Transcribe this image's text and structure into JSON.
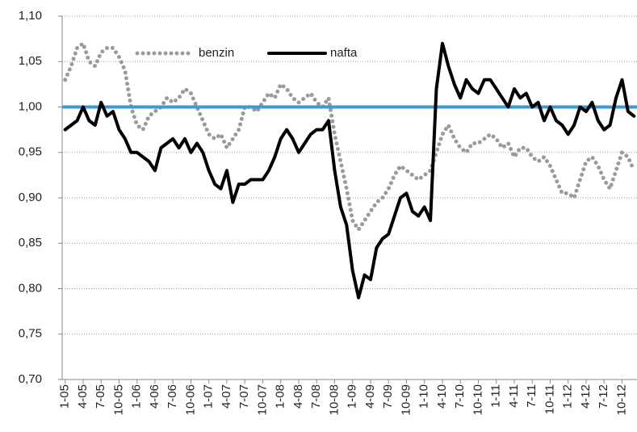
{
  "chart_data": {
    "type": "line",
    "categories": [
      "1-05",
      null,
      null,
      "4-05",
      null,
      null,
      "7-05",
      null,
      null,
      "10-05",
      null,
      null,
      "1-06",
      null,
      null,
      "4-06",
      null,
      null,
      "7-06",
      null,
      null,
      "10-06",
      null,
      null,
      "1-07",
      null,
      null,
      "4-07",
      null,
      null,
      "7-07",
      null,
      null,
      "10-07",
      null,
      null,
      "1-08",
      null,
      null,
      "4-08",
      null,
      null,
      "7-08",
      null,
      null,
      "10-08",
      null,
      null,
      "1-09",
      null,
      null,
      "4-09",
      null,
      null,
      "7-09",
      null,
      null,
      "10-09",
      null,
      null,
      "1-10",
      null,
      null,
      "4-10",
      null,
      null,
      "7-10",
      null,
      null,
      "10-10",
      null,
      null,
      "1-11",
      null,
      null,
      "4-11",
      null,
      null,
      "7-11",
      null,
      null,
      "10-11",
      null,
      null,
      "1-12",
      null,
      null,
      "4-12",
      null,
      null,
      "7-12",
      null,
      null,
      "10-12",
      null,
      null
    ],
    "series": [
      {
        "name": "benzin",
        "color": "#9b9b9b",
        "style": "dotted",
        "values": [
          1.03,
          1.045,
          1.065,
          1.07,
          1.05,
          1.045,
          1.06,
          1.065,
          1.065,
          1.055,
          1.04,
          1.0,
          0.98,
          0.975,
          0.99,
          0.995,
          1.0,
          1.01,
          1.005,
          1.01,
          1.02,
          1.015,
          1.0,
          0.985,
          0.97,
          0.965,
          0.97,
          0.955,
          0.965,
          0.975,
          1.0,
          1.0,
          0.995,
          1.005,
          1.015,
          1.01,
          1.025,
          1.02,
          1.01,
          1.005,
          1.01,
          1.015,
          1.005,
          1.0,
          1.01,
          0.97,
          0.94,
          0.91,
          0.875,
          0.865,
          0.875,
          0.885,
          0.895,
          0.9,
          0.91,
          0.925,
          0.935,
          0.93,
          0.925,
          0.92,
          0.925,
          0.93,
          0.95,
          0.97,
          0.98,
          0.965,
          0.955,
          0.95,
          0.96,
          0.96,
          0.965,
          0.97,
          0.965,
          0.955,
          0.96,
          0.945,
          0.955,
          0.955,
          0.945,
          0.94,
          0.945,
          0.935,
          0.92,
          0.905,
          0.905,
          0.9,
          0.92,
          0.94,
          0.945,
          0.935,
          0.92,
          0.91,
          0.93,
          0.95,
          0.945,
          0.93
        ]
      },
      {
        "name": "nafta",
        "color": "#000000",
        "style": "solid",
        "values": [
          0.975,
          0.98,
          0.985,
          1.0,
          0.985,
          0.98,
          1.005,
          0.99,
          0.995,
          0.975,
          0.965,
          0.95,
          0.95,
          0.945,
          0.94,
          0.93,
          0.955,
          0.96,
          0.965,
          0.955,
          0.965,
          0.95,
          0.96,
          0.95,
          0.93,
          0.915,
          0.91,
          0.93,
          0.895,
          0.915,
          0.915,
          0.92,
          0.92,
          0.92,
          0.93,
          0.945,
          0.965,
          0.975,
          0.965,
          0.95,
          0.96,
          0.97,
          0.975,
          0.975,
          0.985,
          0.93,
          0.89,
          0.87,
          0.82,
          0.79,
          0.815,
          0.81,
          0.845,
          0.855,
          0.86,
          0.88,
          0.9,
          0.905,
          0.885,
          0.88,
          0.89,
          0.875,
          1.02,
          1.07,
          1.045,
          1.025,
          1.01,
          1.03,
          1.02,
          1.015,
          1.03,
          1.03,
          1.02,
          1.01,
          1.0,
          1.02,
          1.01,
          1.015,
          1.0,
          1.005,
          0.985,
          1.0,
          0.985,
          0.98,
          0.97,
          0.98,
          1.0,
          0.995,
          1.005,
          0.985,
          0.975,
          0.98,
          1.01,
          1.03,
          0.995,
          0.99
        ]
      }
    ],
    "reference_line": {
      "value": 1.0,
      "color": "#3a9ad9"
    },
    "ylim": [
      0.7,
      1.1
    ],
    "yticks": [
      {
        "value": 0.7,
        "label": "0,70"
      },
      {
        "value": 0.75,
        "label": "0,75"
      },
      {
        "value": 0.8,
        "label": "0,80"
      },
      {
        "value": 0.85,
        "label": "0,85"
      },
      {
        "value": 0.9,
        "label": "0,90"
      },
      {
        "value": 0.95,
        "label": "0,95"
      },
      {
        "value": 1.0,
        "label": "1,00"
      },
      {
        "value": 1.05,
        "label": "1,05"
      },
      {
        "value": 1.1,
        "label": "1,10"
      }
    ],
    "grid": true
  }
}
